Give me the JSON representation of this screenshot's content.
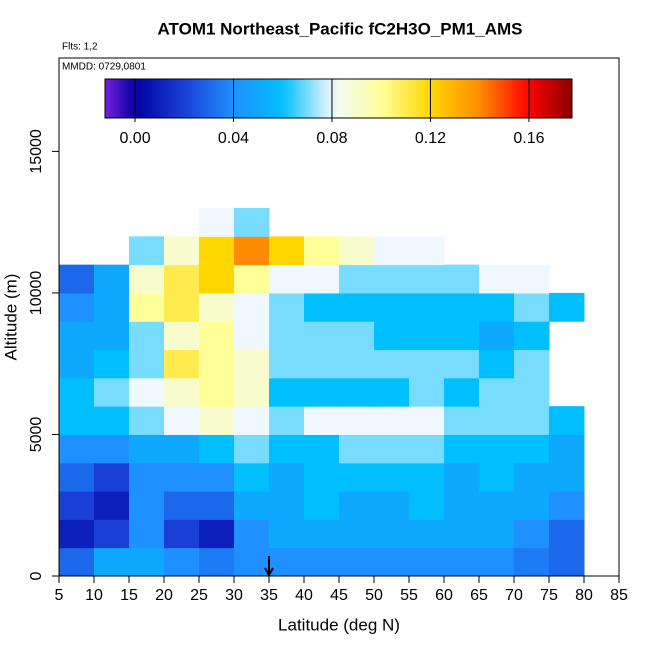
{
  "chart_data": {
    "type": "heatmap",
    "title": "ATOM1 Northeast_Pacific fC2H3O_PM1_AMS",
    "subtitle": "Flts: 1,2",
    "annotation": "MMDD: 0729,0801",
    "x_label": "Latitude (deg N)",
    "y_label": "Altitude (m)",
    "xlim": [
      5,
      85
    ],
    "ylim": [
      0,
      18300
    ],
    "xticks": [
      5,
      10,
      15,
      20,
      25,
      30,
      35,
      40,
      45,
      50,
      55,
      60,
      65,
      70,
      75,
      80,
      85
    ],
    "yticks": [
      0,
      5000,
      10000,
      15000
    ],
    "x_edges": [
      5,
      10,
      15,
      20,
      25,
      30,
      35,
      40,
      45,
      50,
      55,
      60,
      65,
      70,
      75,
      80
    ],
    "y_edges": [
      0,
      1000,
      2000,
      3000,
      4000,
      5000,
      6000,
      7000,
      8000,
      9000,
      10000,
      11000,
      12000,
      13000
    ],
    "z": [
      [
        0.03,
        0.05,
        0.05,
        0.04,
        0.035,
        0.04,
        0.04,
        0.04,
        0.04,
        0.04,
        0.04,
        0.04,
        0.04,
        0.035,
        0.03
      ],
      [
        0.01,
        0.02,
        0.04,
        0.02,
        0.01,
        0.04,
        0.05,
        0.05,
        0.05,
        0.05,
        0.05,
        0.05,
        0.05,
        0.04,
        0.03
      ],
      [
        0.02,
        0.01,
        0.04,
        0.03,
        0.03,
        0.05,
        0.05,
        0.06,
        0.05,
        0.05,
        0.06,
        0.05,
        0.05,
        0.05,
        0.04
      ],
      [
        0.03,
        0.02,
        0.04,
        0.04,
        0.04,
        0.06,
        0.05,
        0.06,
        0.06,
        0.06,
        0.06,
        0.05,
        0.06,
        0.05,
        0.05
      ],
      [
        0.04,
        0.04,
        0.05,
        0.05,
        0.06,
        0.07,
        0.06,
        0.06,
        0.07,
        0.07,
        0.07,
        0.06,
        0.06,
        0.06,
        0.05
      ],
      [
        0.06,
        0.06,
        0.07,
        0.08,
        0.09,
        0.08,
        0.07,
        0.08,
        0.08,
        0.08,
        0.08,
        0.07,
        0.07,
        0.07,
        0.06
      ],
      [
        0.06,
        0.07,
        0.08,
        0.09,
        0.1,
        0.09,
        0.06,
        0.06,
        0.06,
        0.06,
        0.07,
        0.06,
        0.07,
        0.07,
        null
      ],
      [
        0.05,
        0.06,
        0.07,
        0.11,
        0.1,
        0.09,
        0.07,
        0.07,
        0.07,
        0.07,
        0.07,
        0.07,
        0.06,
        0.07,
        null
      ],
      [
        0.05,
        0.05,
        0.07,
        0.09,
        0.1,
        0.08,
        0.07,
        0.07,
        0.07,
        0.06,
        0.06,
        0.06,
        0.05,
        0.06,
        null
      ],
      [
        0.04,
        0.05,
        0.1,
        0.11,
        0.09,
        0.08,
        0.07,
        0.06,
        0.06,
        0.06,
        0.06,
        0.06,
        0.06,
        0.07,
        0.06
      ],
      [
        0.03,
        0.05,
        0.09,
        0.11,
        0.12,
        0.1,
        0.08,
        0.08,
        0.07,
        0.07,
        0.07,
        0.07,
        0.08,
        0.08,
        null
      ],
      [
        null,
        null,
        0.07,
        0.09,
        0.12,
        0.14,
        0.12,
        0.1,
        0.09,
        0.08,
        0.08,
        null,
        null,
        null,
        null
      ],
      [
        null,
        null,
        null,
        null,
        0.08,
        0.07,
        null,
        null,
        null,
        null,
        null,
        null,
        null,
        null,
        null
      ]
    ],
    "clim": [
      -0.0122,
      0.1775
    ],
    "cticks": [
      {
        "value": 0,
        "label": "0.00"
      },
      {
        "value": 0.04,
        "label": "0.04"
      },
      {
        "value": 0.08,
        "label": "0.08"
      },
      {
        "value": 0.12,
        "label": "0.12"
      },
      {
        "value": 0.16,
        "label": "0.16"
      }
    ],
    "colorscale": [
      [
        -0.0122,
        "#7b1fe0"
      ],
      [
        0,
        "#0000a0"
      ],
      [
        0.02,
        "#1a3fd6"
      ],
      [
        0.04,
        "#1e90ff"
      ],
      [
        0.06,
        "#00bfff"
      ],
      [
        0.08,
        "#f0f8ff"
      ],
      [
        0.1,
        "#ffff99"
      ],
      [
        0.12,
        "#ffd700"
      ],
      [
        0.14,
        "#ff8c00"
      ],
      [
        0.16,
        "#ff0000"
      ],
      [
        0.1775,
        "#8b0000"
      ]
    ],
    "marker_x": 35
  }
}
